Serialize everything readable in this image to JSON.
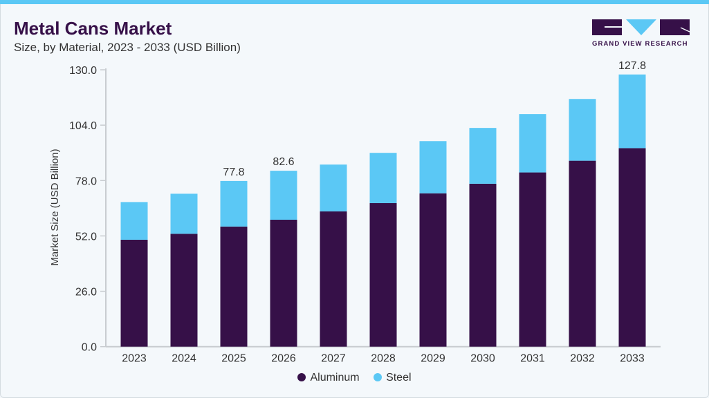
{
  "header": {
    "title": "Metal Cans Market",
    "subtitle": "Size, by Material, 2023 - 2033 (USD Billion)"
  },
  "logo": {
    "text": "GRAND VIEW RESEARCH"
  },
  "colors": {
    "Aluminum": "#361048",
    "Steel": "#5bc8f5",
    "accent": "#5bc8f5"
  },
  "chart_data": {
    "type": "bar",
    "stacked": true,
    "title": "Metal Cans Market",
    "subtitle": "Size, by Material, 2023 - 2033 (USD Billion)",
    "xlabel": "",
    "ylabel": "Market Size (USD Billion)",
    "ylim": [
      0,
      130
    ],
    "yticks": [
      "0.0",
      "26.0",
      "52.0",
      "78.0",
      "104.0",
      "130.0"
    ],
    "grid": false,
    "legend": "bottom",
    "categories": [
      "2023",
      "2024",
      "2025",
      "2026",
      "2027",
      "2028",
      "2029",
      "2030",
      "2031",
      "2032",
      "2033"
    ],
    "series": [
      {
        "name": "Aluminum",
        "values": [
          50.2,
          53.0,
          56.4,
          59.6,
          63.5,
          67.4,
          72.0,
          76.5,
          81.8,
          87.3,
          93.2
        ]
      },
      {
        "name": "Steel",
        "values": [
          17.7,
          18.8,
          21.4,
          23.0,
          22.0,
          23.6,
          24.5,
          26.2,
          27.4,
          29.0,
          34.6
        ]
      }
    ],
    "data_labels": {
      "2025": "77.8",
      "2026": "82.6",
      "2033": "127.8"
    }
  }
}
